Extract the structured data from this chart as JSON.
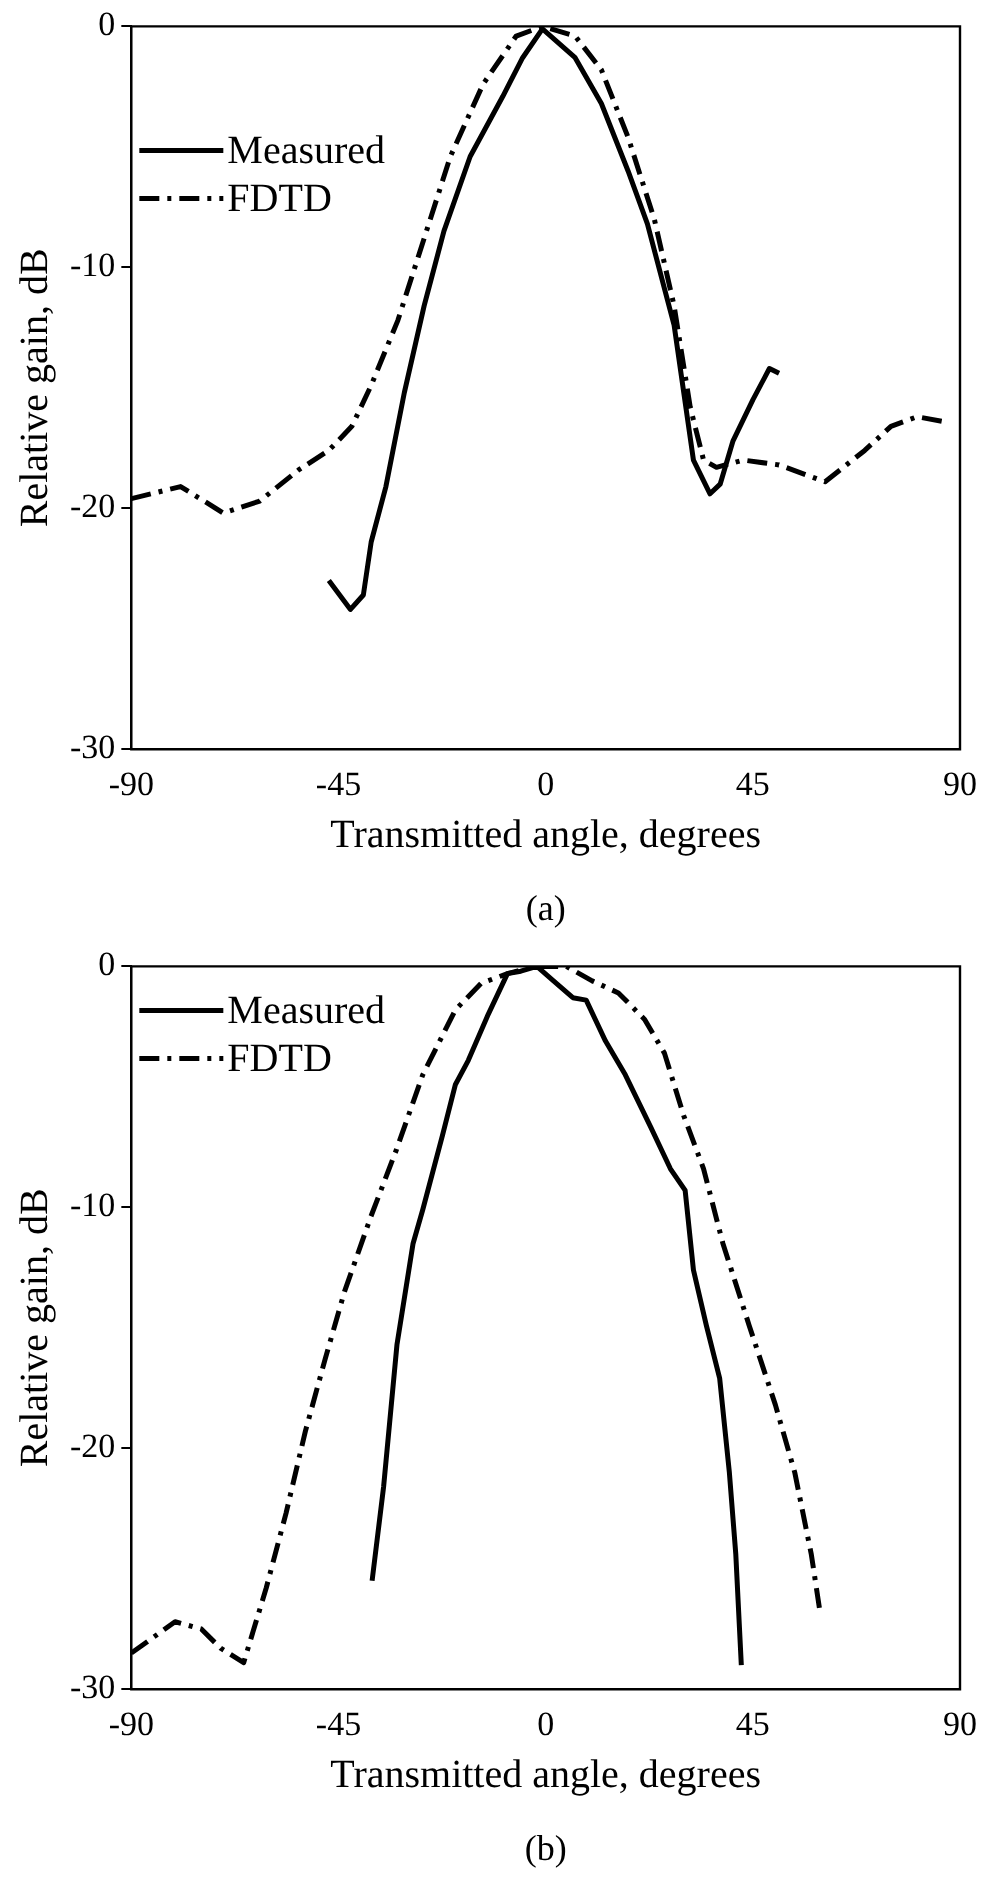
{
  "chart_data": [
    {
      "type": "line",
      "xlabel": "Transmitted angle, degrees",
      "ylabel": "Relative gain, dB",
      "annotations": [
        "(a)"
      ],
      "xlim": [
        -90,
        90
      ],
      "xticks": [
        -90,
        -45,
        0,
        45,
        90
      ],
      "ylim": [
        -30,
        0
      ],
      "yticks": [
        -30,
        -20,
        -10,
        0
      ],
      "grid": false,
      "legend": "top left",
      "marker": "none",
      "series": [
        {
          "name": "Measured",
          "color": "#000000",
          "line_style": "solid",
          "x": [
            -47.1,
            -42.4,
            -39.6,
            -37.9,
            -34.7,
            -30.7,
            -26.4,
            -22.1,
            -16.4,
            -9.3,
            -5,
            -0.7,
            6.4,
            12.1,
            17.9,
            22.1,
            27.9,
            32.1,
            35.7,
            37.9,
            40.7,
            45,
            48.6,
            50.7
          ],
          "values": [
            -23,
            -24.2,
            -23.6,
            -21.4,
            -19.1,
            -15.2,
            -11.6,
            -8.5,
            -5.4,
            -2.9,
            -1.3,
            -0.1,
            -1.3,
            -3.2,
            -6,
            -8.2,
            -12.4,
            -18,
            -19.4,
            -19,
            -17.2,
            -15.5,
            -14.2,
            -14.4
          ]
        },
        {
          "name": "FDTD",
          "color": "#000000",
          "line_style": "dashed",
          "x": [
            -90,
            -79.3,
            -70,
            -62.1,
            -53.6,
            -47.1,
            -42.1,
            -37.9,
            -32.1,
            -26.4,
            -20.7,
            -13.6,
            -6.4,
            -0.7,
            6.4,
            12.1,
            17.9,
            23.6,
            27.9,
            31.4,
            34.3,
            37.1,
            42.9,
            50.7,
            60.7,
            69.3,
            75,
            80.7,
            86.4
          ],
          "values": [
            -19.6,
            -19.1,
            -20.2,
            -19.7,
            -18.4,
            -17.6,
            -16.6,
            -14.9,
            -12.2,
            -8.8,
            -5.4,
            -2.4,
            -0.4,
            0,
            -0.4,
            -1.8,
            -4.6,
            -8,
            -11.6,
            -15.8,
            -18,
            -18.3,
            -18,
            -18.2,
            -18.9,
            -17.6,
            -16.6,
            -16.2,
            -16.4
          ]
        }
      ]
    },
    {
      "type": "line",
      "xlabel": "Transmitted angle, degrees",
      "ylabel": "Relative gain, dB",
      "annotations": [
        "(b)"
      ],
      "xlim": [
        -90,
        90
      ],
      "xticks": [
        -90,
        -45,
        0,
        45,
        90
      ],
      "ylim": [
        -30,
        0
      ],
      "yticks": [
        -30,
        -20,
        -10,
        0
      ],
      "grid": false,
      "legend": "top left",
      "marker": "none",
      "series": [
        {
          "name": "Measured",
          "color": "#000000",
          "line_style": "solid",
          "x": [
            -37.7,
            -35.2,
            -32.3,
            -28.8,
            -26.7,
            -22.4,
            -19.6,
            -16.8,
            -12.5,
            -8.3,
            -5.4,
            -1.9,
            1.7,
            5.9,
            8.8,
            13,
            17.3,
            22.9,
            27.1,
            30.3,
            32.1,
            34.9,
            37.8,
            39.9,
            41.3,
            42.5
          ],
          "values": [
            -25.5,
            -21.6,
            -15.7,
            -11.5,
            -10.1,
            -7,
            -4.9,
            -3.9,
            -2,
            -0.3,
            -0.2,
            0,
            -0.6,
            -1.3,
            -1.4,
            -3.1,
            -4.5,
            -6.7,
            -8.4,
            -9.3,
            -12.6,
            -14.9,
            -17.1,
            -21,
            -24.4,
            -29
          ]
        },
        {
          "name": "FDTD",
          "color": "#000000",
          "line_style": "dashed",
          "x": [
            -90,
            -80.5,
            -74.8,
            -70.6,
            -65.6,
            -60.7,
            -56.4,
            -52.2,
            -47.9,
            -43.7,
            -38,
            -32.4,
            -26.7,
            -19.6,
            -14,
            -8.3,
            -2.6,
            4.5,
            10.1,
            15.8,
            21.5,
            25.8,
            30,
            34.3,
            38.5,
            44.2,
            49.9,
            54.1,
            57.7,
            59.6
          ],
          "values": [
            -28.5,
            -27.2,
            -27.5,
            -28.3,
            -28.9,
            -25.8,
            -22.7,
            -19.3,
            -16.3,
            -13.5,
            -10.4,
            -7.6,
            -4.5,
            -1.8,
            -0.7,
            -0.3,
            0,
            0,
            -0.6,
            -1.1,
            -2.2,
            -3.6,
            -6.2,
            -8.4,
            -11.5,
            -14.9,
            -18.2,
            -21,
            -24.4,
            -26.8
          ]
        }
      ]
    }
  ]
}
